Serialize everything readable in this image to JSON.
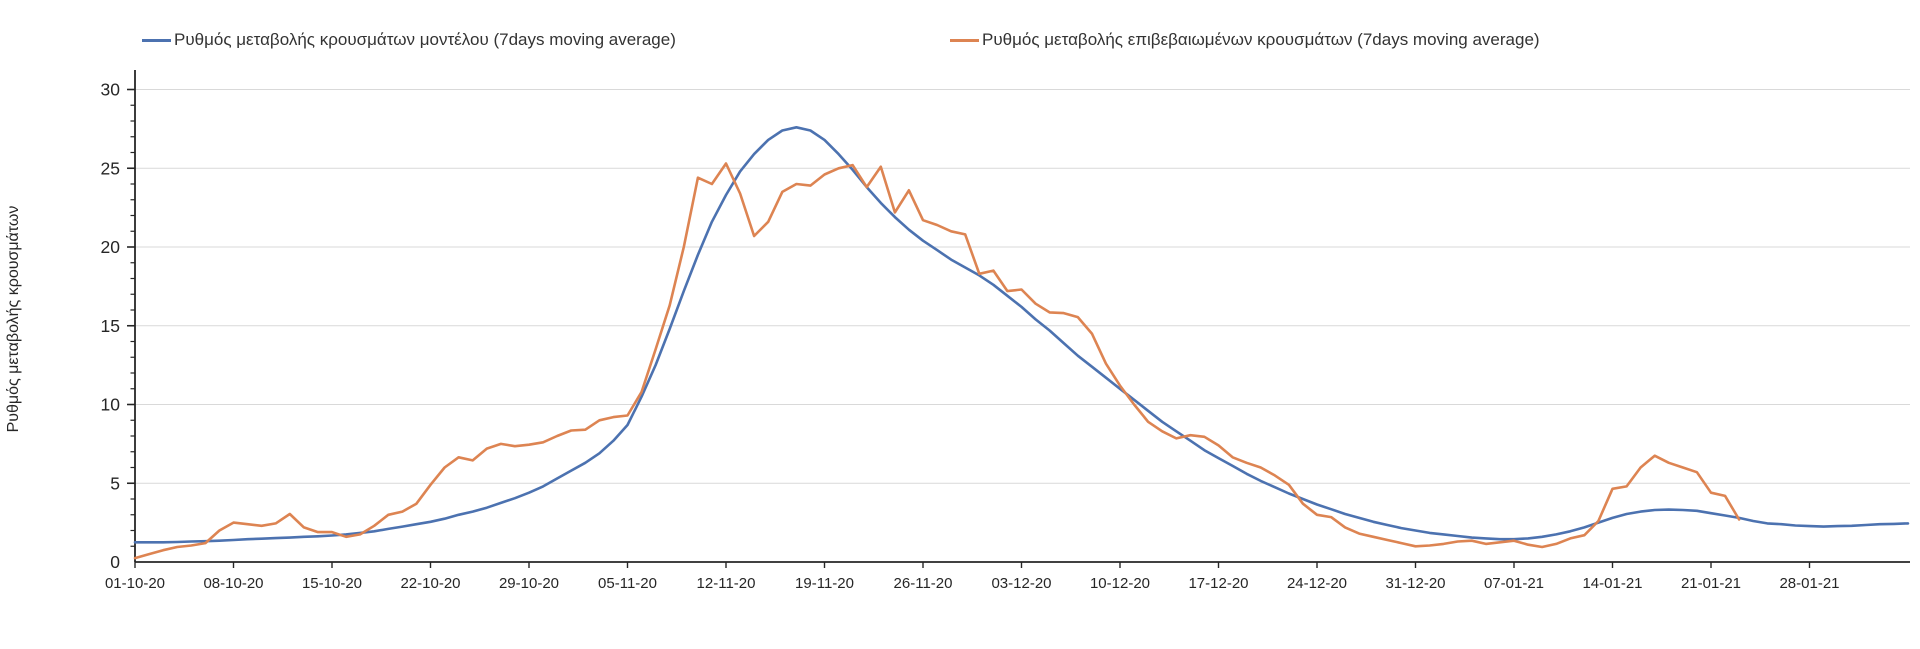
{
  "figure": {
    "background": "#ffffff",
    "axis_color": "#262626",
    "gridline_color": "#d9d9d9",
    "tick_label_color": "#262626"
  },
  "chart_data": {
    "type": "line",
    "title": "",
    "xlabel": "",
    "ylabel": "Ρυθμός μεταβολής κρουσμάτων",
    "ylim": [
      0,
      30
    ],
    "y_ticks": [
      0,
      5,
      10,
      15,
      20,
      25,
      30
    ],
    "y_minor_tick_step": 1,
    "grid": "horizontal-only",
    "legend_position": "top",
    "start_date": "01-10-20",
    "x_unit": "days",
    "x_total_days": 126,
    "x_tick_day_offsets": [
      0,
      7,
      14,
      21,
      28,
      35,
      42,
      49,
      56,
      63,
      70,
      77,
      84,
      91,
      98,
      105,
      112,
      119
    ],
    "x_tick_labels": [
      "01-10-20",
      "08-10-20",
      "15-10-20",
      "22-10-20",
      "29-10-20",
      "05-11-20",
      "12-11-20",
      "19-11-20",
      "26-11-20",
      "03-12-20",
      "10-12-20",
      "17-12-20",
      "24-12-20",
      "31-12-20",
      "07-01-21",
      "14-01-21",
      "21-01-21",
      "28-01-21"
    ],
    "series": [
      {
        "name": "Ρυθμός μεταβολής κρουσμάτων μοντέλου (7days moving average)",
        "color": "#4C72B0",
        "start_day": 0,
        "values": [
          1.25,
          1.25,
          1.25,
          1.27,
          1.3,
          1.32,
          1.35,
          1.4,
          1.45,
          1.48,
          1.52,
          1.55,
          1.6,
          1.63,
          1.68,
          1.75,
          1.85,
          1.95,
          2.1,
          2.25,
          2.4,
          2.55,
          2.75,
          3.0,
          3.2,
          3.45,
          3.75,
          4.05,
          4.4,
          4.8,
          5.3,
          5.8,
          6.3,
          6.9,
          7.7,
          8.7,
          10.5,
          12.5,
          14.8,
          17.2,
          19.5,
          21.6,
          23.3,
          24.8,
          25.9,
          26.8,
          27.4,
          27.6,
          27.4,
          26.8,
          25.9,
          24.9,
          23.8,
          22.8,
          21.9,
          21.1,
          20.4,
          19.8,
          19.2,
          18.7,
          18.2,
          17.6,
          16.9,
          16.2,
          15.4,
          14.7,
          13.9,
          13.1,
          12.4,
          11.7,
          11.0,
          10.3,
          9.6,
          8.9,
          8.3,
          7.7,
          7.1,
          6.6,
          6.1,
          5.6,
          5.15,
          4.75,
          4.35,
          4.0,
          3.65,
          3.35,
          3.05,
          2.8,
          2.55,
          2.35,
          2.15,
          2.0,
          1.85,
          1.75,
          1.65,
          1.55,
          1.5,
          1.45,
          1.45,
          1.5,
          1.6,
          1.75,
          1.95,
          2.2,
          2.5,
          2.8,
          3.05,
          3.2,
          3.3,
          3.33,
          3.3,
          3.25,
          3.1,
          2.95,
          2.8,
          2.6,
          2.45,
          2.4,
          2.32,
          2.28,
          2.25,
          2.28,
          2.3,
          2.35,
          2.4,
          2.42,
          2.45
        ]
      },
      {
        "name": "Ρυθμός μεταβολής επιβεβαιωμένων κρουσμάτων (7days moving average)",
        "color": "#DD8452",
        "start_day": 0,
        "values": [
          0.25,
          0.5,
          0.75,
          0.95,
          1.05,
          1.2,
          2.0,
          2.5,
          2.4,
          2.3,
          2.45,
          3.05,
          2.2,
          1.9,
          1.9,
          1.6,
          1.75,
          2.3,
          3.0,
          3.2,
          3.7,
          4.9,
          6.0,
          6.65,
          6.45,
          7.2,
          7.5,
          7.35,
          7.45,
          7.6,
          8.0,
          8.35,
          8.4,
          9.0,
          9.2,
          9.3,
          10.8,
          13.5,
          16.3,
          20.0,
          24.4,
          24.0,
          25.3,
          23.4,
          20.7,
          21.6,
          23.5,
          24.0,
          23.9,
          24.6,
          25.0,
          25.2,
          23.8,
          25.1,
          22.2,
          23.6,
          21.7,
          21.4,
          21.0,
          20.8,
          18.3,
          18.5,
          17.2,
          17.3,
          16.4,
          15.85,
          15.8,
          15.55,
          14.5,
          12.6,
          11.2,
          10.0,
          8.9,
          8.3,
          7.85,
          8.05,
          7.95,
          7.4,
          6.65,
          6.3,
          6.0,
          5.5,
          4.9,
          3.7,
          3.0,
          2.85,
          2.2,
          1.8,
          1.6,
          1.4,
          1.2,
          1.0,
          1.05,
          1.15,
          1.3,
          1.35,
          1.15,
          1.25,
          1.35,
          1.1,
          0.95,
          1.15,
          1.5,
          1.7,
          2.6,
          4.65,
          4.8,
          6.0,
          6.75,
          6.3,
          6.0,
          5.7,
          4.4,
          4.2,
          2.7
        ]
      }
    ]
  }
}
